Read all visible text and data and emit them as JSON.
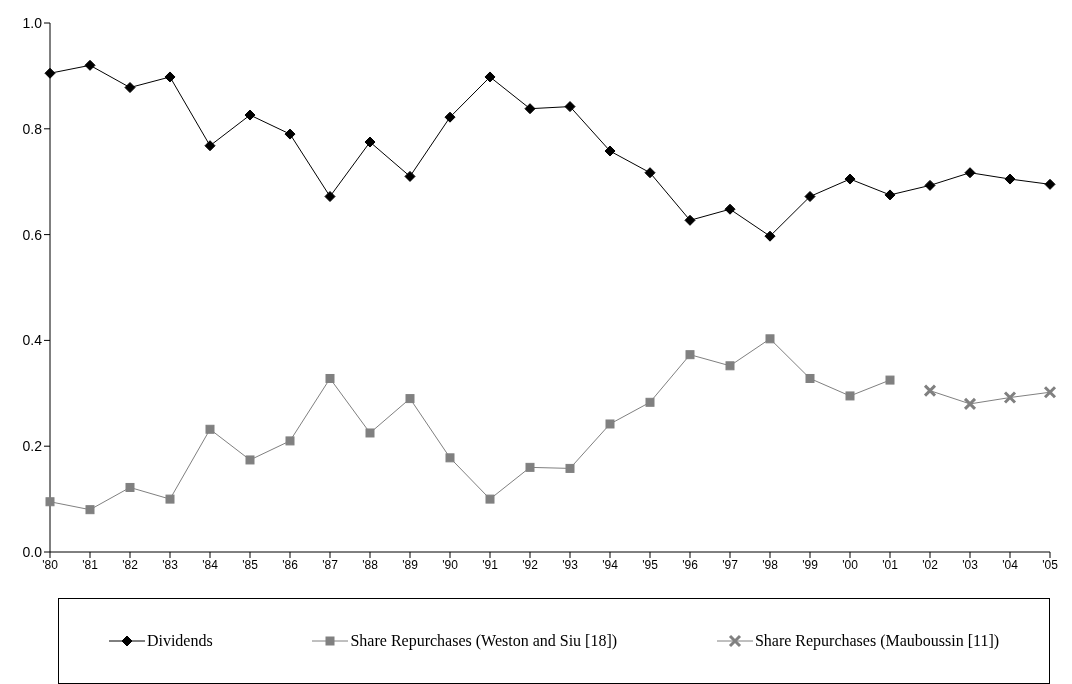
{
  "chart_data": {
    "type": "line",
    "categories": [
      "'80",
      "'81",
      "'82",
      "'83",
      "'84",
      "'85",
      "'86",
      "'87",
      "'88",
      "'89",
      "'90",
      "'91",
      "'92",
      "'93",
      "'94",
      "'95",
      "'96",
      "'97",
      "'98",
      "'99",
      "'00",
      "'01",
      "'02",
      "'03",
      "'04",
      "'05"
    ],
    "series": [
      {
        "name": "Dividends",
        "color": "#000000",
        "marker": "diamond",
        "values": [
          0.905,
          0.92,
          0.878,
          0.898,
          0.768,
          0.826,
          0.79,
          0.672,
          0.775,
          0.71,
          0.822,
          0.898,
          0.838,
          0.842,
          0.758,
          0.717,
          0.627,
          0.648,
          0.597,
          0.672,
          0.705,
          0.675,
          0.693,
          0.717,
          0.705,
          0.695
        ]
      },
      {
        "name": "Share Repurchases (Weston and Siu [18])",
        "color": "#808080",
        "marker": "square",
        "values": [
          0.095,
          0.08,
          0.122,
          0.1,
          0.232,
          0.174,
          0.21,
          0.328,
          0.225,
          0.29,
          0.178,
          0.1,
          0.16,
          0.158,
          0.242,
          0.283,
          0.373,
          0.352,
          0.403,
          0.328,
          0.295,
          0.325,
          null,
          null,
          null,
          null
        ]
      },
      {
        "name": "Share Repurchases (Mauboussin [11])",
        "color": "#808080",
        "marker": "cross",
        "values": [
          null,
          null,
          null,
          null,
          null,
          null,
          null,
          null,
          null,
          null,
          null,
          null,
          null,
          null,
          null,
          null,
          null,
          null,
          null,
          null,
          null,
          null,
          0.305,
          0.28,
          0.292,
          0.302
        ]
      }
    ],
    "ylim": [
      0,
      1
    ],
    "yticks": [
      {
        "value": 0,
        "label": "0.0"
      },
      {
        "value": 0.2,
        "label": "0.2"
      },
      {
        "value": 0.4,
        "label": "0.4"
      },
      {
        "value": 0.6,
        "label": "0.6"
      },
      {
        "value": 0.8,
        "label": "0.8"
      },
      {
        "value": 1,
        "label": "1.0"
      }
    ],
    "legend": "bottom",
    "line_style": "solid"
  }
}
